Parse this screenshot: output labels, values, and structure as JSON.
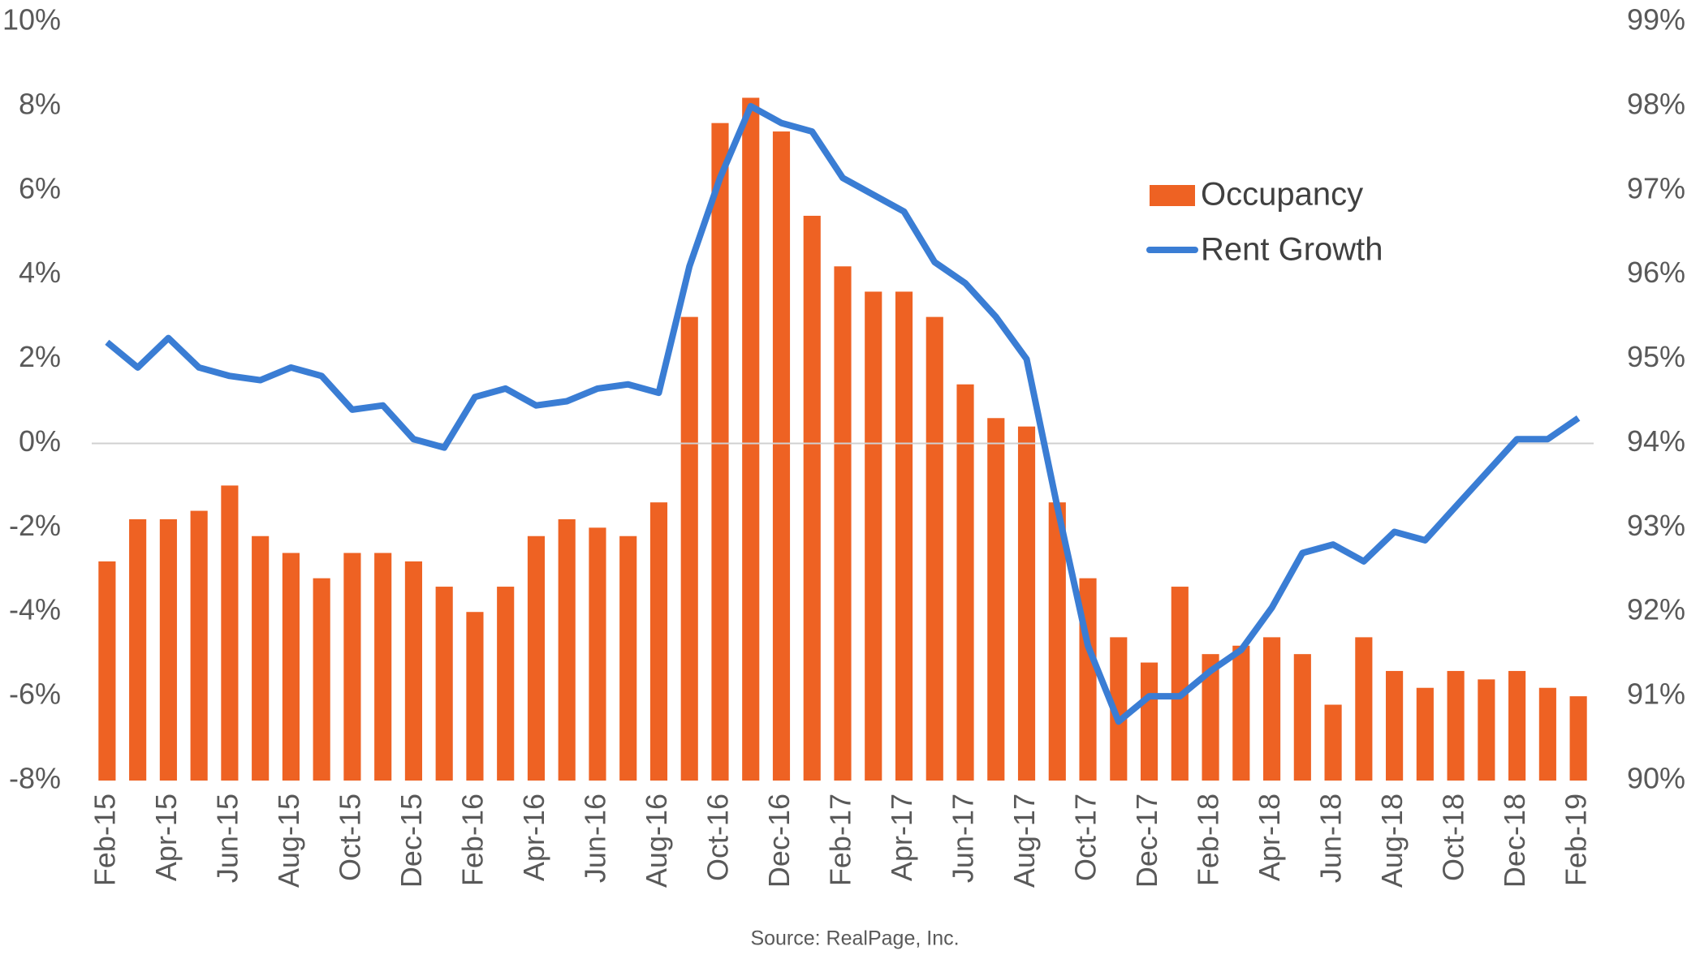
{
  "chart_data": {
    "type": "bar_line",
    "source": "Source: RealPage, Inc.",
    "categories": [
      "Feb-15",
      null,
      "Apr-15",
      null,
      "Jun-15",
      null,
      "Aug-15",
      null,
      "Oct-15",
      null,
      "Dec-15",
      null,
      "Feb-16",
      null,
      "Apr-16",
      null,
      "Jun-16",
      null,
      "Aug-16",
      null,
      "Oct-16",
      null,
      "Dec-16",
      null,
      "Feb-17",
      null,
      "Apr-17",
      null,
      "Jun-17",
      null,
      "Aug-17",
      null,
      "Oct-17",
      null,
      "Dec-17",
      null,
      "Feb-18",
      null,
      "Apr-18",
      null,
      "Jun-18",
      null,
      "Aug-18",
      null,
      "Oct-18",
      null,
      "Dec-18",
      null,
      "Feb-19"
    ],
    "series": [
      {
        "name": "Occupancy",
        "type": "bar",
        "axis": "y2",
        "color": "#ee6223",
        "values": [
          92.6,
          93.1,
          93.1,
          93.2,
          93.5,
          92.9,
          92.7,
          92.4,
          92.7,
          92.7,
          92.6,
          92.3,
          92.0,
          92.3,
          92.9,
          93.1,
          93.0,
          92.9,
          93.3,
          95.5,
          97.8,
          98.1,
          97.7,
          96.7,
          96.1,
          95.8,
          95.8,
          95.5,
          94.7,
          94.3,
          94.2,
          93.3,
          92.4,
          91.7,
          91.4,
          92.3,
          91.5,
          91.6,
          91.7,
          91.5,
          90.9,
          91.7,
          91.3,
          91.1,
          91.3,
          91.2,
          91.3,
          91.1,
          91.0
        ]
      },
      {
        "name": "Rent Growth",
        "type": "line",
        "axis": "y",
        "color": "#3a7dd4",
        "values": [
          2.4,
          1.8,
          2.5,
          1.8,
          1.6,
          1.5,
          1.8,
          1.6,
          0.8,
          0.9,
          0.1,
          -0.1,
          1.1,
          1.3,
          0.9,
          1.0,
          1.3,
          1.4,
          1.2,
          4.2,
          6.3,
          8.0,
          7.6,
          7.4,
          6.3,
          5.9,
          5.5,
          4.3,
          3.8,
          3.0,
          2.0,
          -1.5,
          -4.8,
          -6.6,
          -6.0,
          -6.0,
          -5.4,
          -4.9,
          -3.9,
          -2.6,
          -2.4,
          -2.8,
          -2.1,
          -2.3,
          -1.5,
          -0.7,
          0.1,
          0.1,
          0.6
        ]
      }
    ],
    "ylim": [
      -8,
      10
    ],
    "yticks": [
      {
        "value": -8,
        "label": "-8%"
      },
      {
        "value": -6,
        "label": "-6%"
      },
      {
        "value": -4,
        "label": "-4%"
      },
      {
        "value": -2,
        "label": "-2%"
      },
      {
        "value": 0,
        "label": "0%"
      },
      {
        "value": 2,
        "label": "2%"
      },
      {
        "value": 4,
        "label": "4%"
      },
      {
        "value": 6,
        "label": "6%"
      },
      {
        "value": 8,
        "label": "8%"
      },
      {
        "value": 10,
        "label": "10%"
      }
    ],
    "y2lim": [
      90,
      99
    ],
    "y2ticks": [
      {
        "value": 90,
        "label": "90%"
      },
      {
        "value": 91,
        "label": "91%"
      },
      {
        "value": 92,
        "label": "92%"
      },
      {
        "value": 93,
        "label": "93%"
      },
      {
        "value": 94,
        "label": "94%"
      },
      {
        "value": 95,
        "label": "95%"
      },
      {
        "value": 96,
        "label": "96%"
      },
      {
        "value": 97,
        "label": "97%"
      },
      {
        "value": 98,
        "label": "98%"
      },
      {
        "value": 99,
        "label": "99%"
      }
    ],
    "zero_line": true,
    "legend": "upper right"
  }
}
